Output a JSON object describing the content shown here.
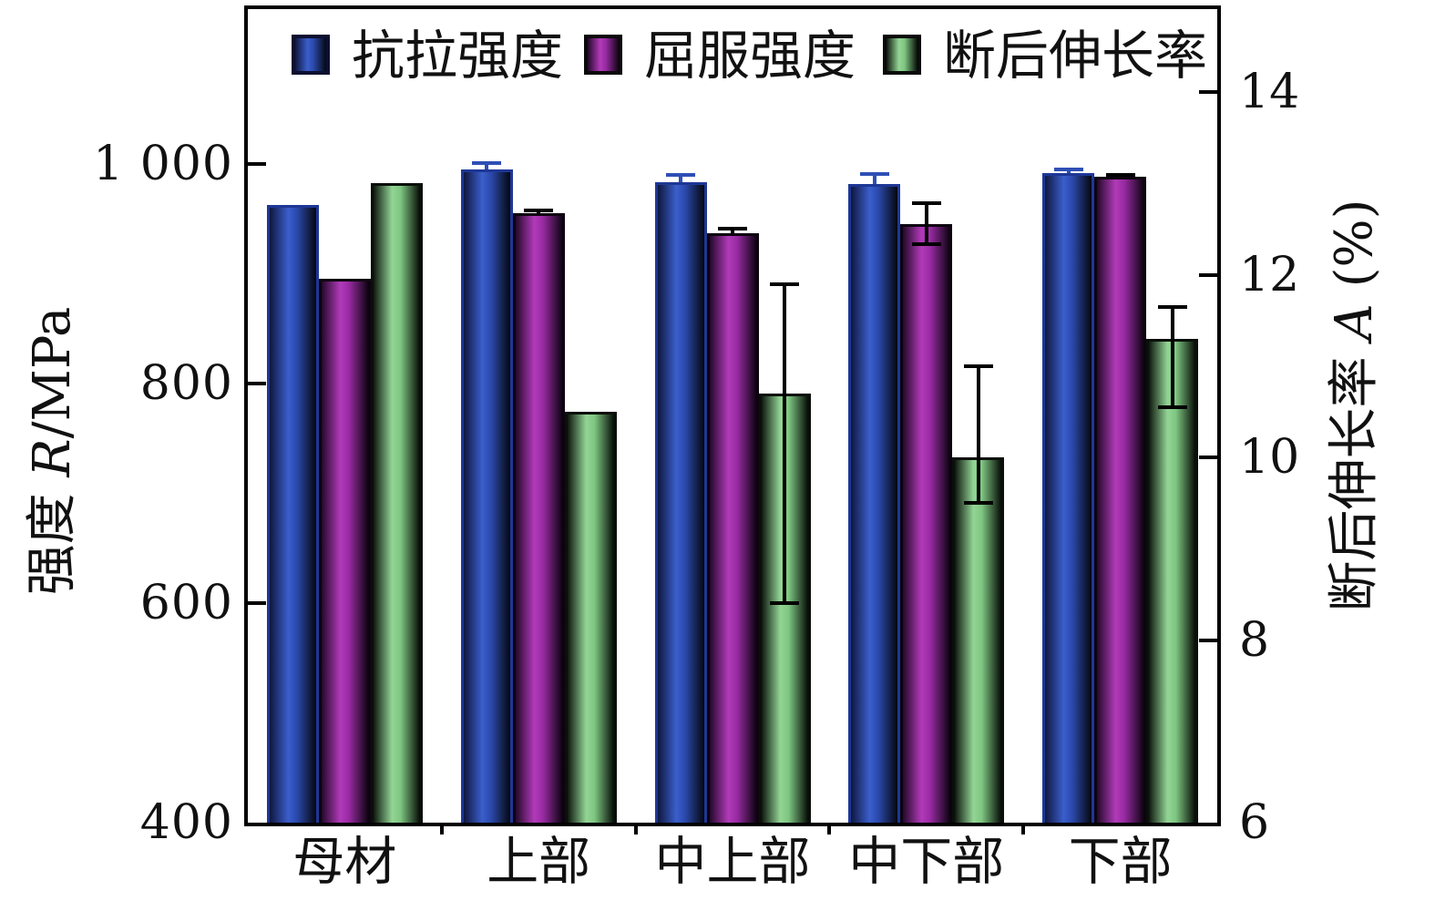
{
  "chart_data": {
    "type": "bar",
    "title": "",
    "categories": [
      "母材",
      "上部",
      "中上部",
      "中下部",
      "下部"
    ],
    "left_axis": {
      "label": "强度 R/MPa",
      "label_cjk": "强度 ",
      "label_var": "R",
      "label_rest": "/MPa",
      "min": 400,
      "max": 1141,
      "ticks": [
        1000,
        800,
        600,
        400
      ],
      "tick_labels": [
        "1 000",
        "800",
        "600",
        "400"
      ]
    },
    "right_axis": {
      "label": "断后伸长率 A (%)",
      "label_cjk": "断后伸长率 ",
      "label_var": "A",
      "label_rest": " (%)",
      "min": 6,
      "max": 14.91,
      "ticks": [
        14,
        12,
        10,
        8,
        6
      ],
      "tick_labels": [
        "14",
        "12",
        "10",
        "8",
        "6"
      ]
    },
    "legend_position": "top-inside",
    "grid": false,
    "series": [
      {
        "name": "抗拉强度",
        "axis": "left",
        "values": [
          963,
          995,
          983,
          982,
          992
        ],
        "err_up": [
          0,
          6,
          7,
          9,
          3
        ],
        "err_down": [
          0,
          0,
          0,
          0,
          0
        ],
        "err_color": "#2e4fb5",
        "fill": {
          "edge_left": "#10173f",
          "bright": "#3a5ecb",
          "mid": "#2b4aae",
          "edge_right": "#05070f"
        },
        "border": "#1e3796"
      },
      {
        "name": "屈服强度",
        "axis": "left",
        "values": [
          895,
          955,
          937,
          945,
          988
        ],
        "err_up": [
          0,
          3,
          4,
          19,
          2
        ],
        "err_down": [
          0,
          0,
          0,
          18,
          0
        ],
        "err_color": "#000000",
        "fill": {
          "edge_left": "#23092a",
          "bright": "#b13ab8",
          "mid": "#9a2ba4",
          "edge_right": "#0f0413"
        },
        "border": "#0d0310"
      },
      {
        "name": "断后伸长率",
        "axis": "right",
        "values": [
          13.0,
          10.5,
          10.7,
          10.0,
          11.3
        ],
        "err_up": [
          0,
          0,
          1.2,
          1.0,
          0.35
        ],
        "err_down": [
          0,
          0,
          2.3,
          0.5,
          0.75
        ],
        "err_color": "#000000",
        "fill": {
          "edge_left": "#0e170e",
          "bright": "#93d595",
          "mid": "#7ec681",
          "edge_right": "#060b06"
        },
        "border": "#0a0f0a"
      }
    ]
  },
  "colors": {
    "axis": "#000000",
    "background": "#ffffff",
    "tensile_blue": "#3a5ecb",
    "yield_purple": "#a834b0",
    "elongation_green": "#8bce8e"
  }
}
